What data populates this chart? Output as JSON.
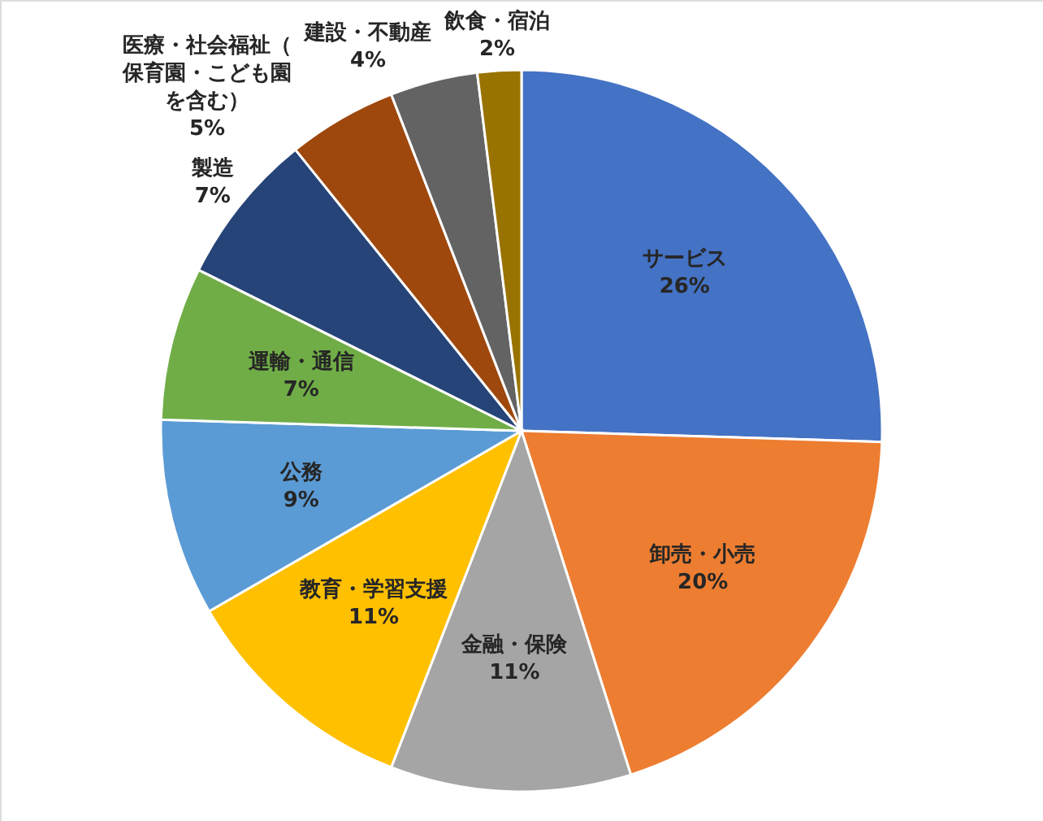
{
  "chart_data": {
    "type": "pie",
    "categories": [
      "サービス",
      "卸売・小売",
      "金融・保険",
      "教育・学習支援",
      "公務",
      "運輸・通信",
      "製造",
      "医療・社会福祉（保育園・こども園を含む）",
      "建設・不動産",
      "飲食・宿泊"
    ],
    "values": [
      26,
      20,
      11,
      11,
      9,
      7,
      7,
      5,
      4,
      2
    ],
    "value_labels": [
      "26%",
      "20%",
      "11%",
      "11%",
      "9%",
      "7%",
      "7%",
      "5%",
      "4%",
      "2%"
    ],
    "colors": [
      "#4472c4",
      "#ed7d31",
      "#a5a5a5",
      "#ffc000",
      "#5b9bd5",
      "#70ad47",
      "#264478",
      "#9e480e",
      "#636363",
      "#997300"
    ]
  }
}
